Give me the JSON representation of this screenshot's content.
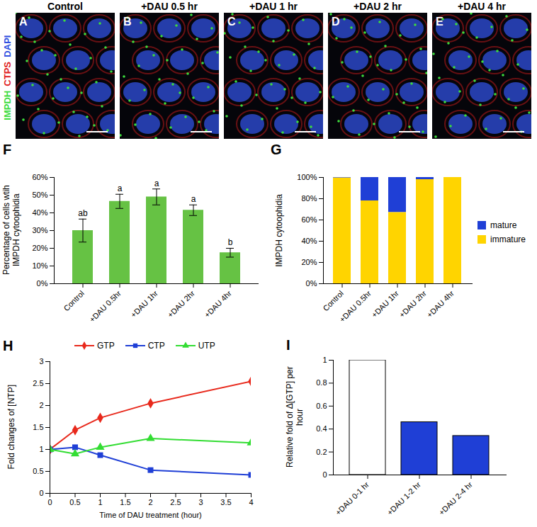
{
  "micrographs": {
    "channels": [
      {
        "name": "IMPDH",
        "color": "#3ddc3d"
      },
      {
        "name": "CTPS",
        "color": "#e02020"
      },
      {
        "name": "DAPI",
        "color": "#3050e0"
      }
    ],
    "panels": [
      {
        "letter": "A",
        "title": "Control"
      },
      {
        "letter": "B",
        "title": "+DAU 0.5 hr"
      },
      {
        "letter": "C",
        "title": "+DAU 1 hr"
      },
      {
        "letter": "D",
        "title": "+DAU 2 hr"
      },
      {
        "letter": "E",
        "title": "+DAU 4 hr"
      }
    ]
  },
  "chart_data": [
    {
      "type": "bar",
      "title": "F",
      "categories": [
        "Control",
        "+DAU 0.5hr",
        "+DAU 1hr",
        "+DAU 2hr",
        "+DAU 4hr"
      ],
      "values": [
        30,
        46.5,
        49,
        41.5,
        17.5
      ],
      "errors": [
        6.5,
        4,
        4.5,
        3,
        2.5
      ],
      "significance": [
        "ab",
        "a",
        "a",
        "a",
        "b"
      ],
      "color": "#66c244",
      "ylabel": "Percentage of cells wtih IMPDH cytoophidia",
      "ylim": [
        0,
        60
      ],
      "yticks": [
        {
          "value": 0,
          "label": "0%"
        },
        {
          "value": 10,
          "label": "10%"
        },
        {
          "value": 20,
          "label": "20%"
        },
        {
          "value": 30,
          "label": "30%"
        },
        {
          "value": 40,
          "label": "40%"
        },
        {
          "value": 50,
          "label": "50%"
        },
        {
          "value": 60,
          "label": "60%"
        }
      ]
    },
    {
      "type": "bar",
      "title": "G",
      "stacked": true,
      "categories": [
        "Control",
        "+DAU 0.5hr",
        "+DAU 1hr",
        "+DAU 2hr",
        "+DAU 4hr"
      ],
      "series": [
        {
          "name": "mature",
          "color": "#1f3fd6",
          "values": [
            0.5,
            22,
            33,
            2,
            0
          ]
        },
        {
          "name": "immature",
          "color": "#ffd400",
          "values": [
            99.5,
            78,
            67,
            98,
            100
          ]
        }
      ],
      "ylabel": "IMPDH cytoophidia",
      "ylim": [
        0,
        100
      ],
      "yticks": [
        {
          "value": 0,
          "label": "0%"
        },
        {
          "value": 20,
          "label": "20%"
        },
        {
          "value": 40,
          "label": "40%"
        },
        {
          "value": 60,
          "label": "60%"
        },
        {
          "value": 80,
          "label": "80%"
        },
        {
          "value": 100,
          "label": "100%"
        }
      ],
      "legend": "right"
    },
    {
      "type": "line",
      "title": "H",
      "x": [
        0,
        0.5,
        1,
        2,
        4
      ],
      "series": [
        {
          "name": "GTP",
          "color": "#e8291c",
          "marker": "diamond",
          "values": [
            1,
            1.44,
            1.72,
            2.05,
            2.55
          ]
        },
        {
          "name": "CTP",
          "color": "#1f3fd6",
          "marker": "square",
          "values": [
            1,
            1.05,
            0.87,
            0.53,
            0.42
          ]
        },
        {
          "name": "UTP",
          "color": "#33dd33",
          "marker": "triangle",
          "values": [
            1,
            0.9,
            1.05,
            1.25,
            1.15
          ]
        }
      ],
      "xlabel": "Time of DAU treatment (hour)",
      "ylabel": "Fold changes of [NTP]",
      "xlim": [
        0,
        4
      ],
      "xticks": [
        0,
        0.5,
        1,
        1.5,
        2,
        2.5,
        3,
        3.5,
        4
      ],
      "ylim": [
        0,
        3
      ],
      "yticks": [
        0,
        0.5,
        1,
        1.5,
        2,
        2.5,
        3
      ],
      "legend": "top"
    },
    {
      "type": "bar",
      "title": "I",
      "categories": [
        "+DAU 0-1 hr",
        "+DAU 1-2 hr",
        "+DAU 2-4 hr"
      ],
      "values": [
        1,
        0.46,
        0.34
      ],
      "colors": [
        "#ffffff",
        "#1f3fd6",
        "#1f3fd6"
      ],
      "ylabel": "Relative fold of Δ[GTP] per hour",
      "ylim": [
        0,
        1
      ],
      "yticks": [
        0,
        0.2,
        0.4,
        0.6,
        0.8,
        1
      ]
    }
  ]
}
